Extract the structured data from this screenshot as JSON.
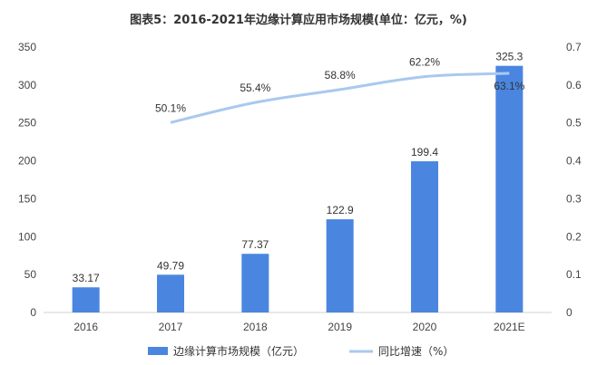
{
  "chart_data": {
    "type": "bar",
    "title": "图表5：2016-2021年边缘计算应用市场规模(单位：亿元，%)",
    "categories": [
      "2016",
      "2017",
      "2018",
      "2019",
      "2020",
      "2021E"
    ],
    "series": [
      {
        "name": "边缘计算市场规模（亿元）",
        "kind": "bar",
        "axis": "left",
        "values": [
          33.17,
          49.79,
          77.37,
          122.9,
          199.4,
          325.3
        ],
        "labels": [
          "33.17",
          "49.79",
          "77.37",
          "122.9",
          "199.4",
          "325.3"
        ],
        "color": "#4a86e0"
      },
      {
        "name": "同比增速（%）",
        "kind": "line",
        "axis": "right",
        "values": [
          null,
          0.501,
          0.554,
          0.588,
          0.622,
          0.631
        ],
        "labels": [
          "",
          "50.1%",
          "55.4%",
          "58.8%",
          "62.2%",
          "63.1%"
        ],
        "color": "#a9c9ee"
      }
    ],
    "y_left": {
      "min": 0,
      "max": 350,
      "ticks": [
        "0",
        "50",
        "100",
        "150",
        "200",
        "250",
        "300",
        "350"
      ]
    },
    "y_right": {
      "min": 0,
      "max": 0.7,
      "ticks": [
        "0",
        "0.1",
        "0.2",
        "0.3",
        "0.4",
        "0.5",
        "0.6",
        "0.7"
      ]
    },
    "grid": false,
    "legend_position": "bottom"
  }
}
